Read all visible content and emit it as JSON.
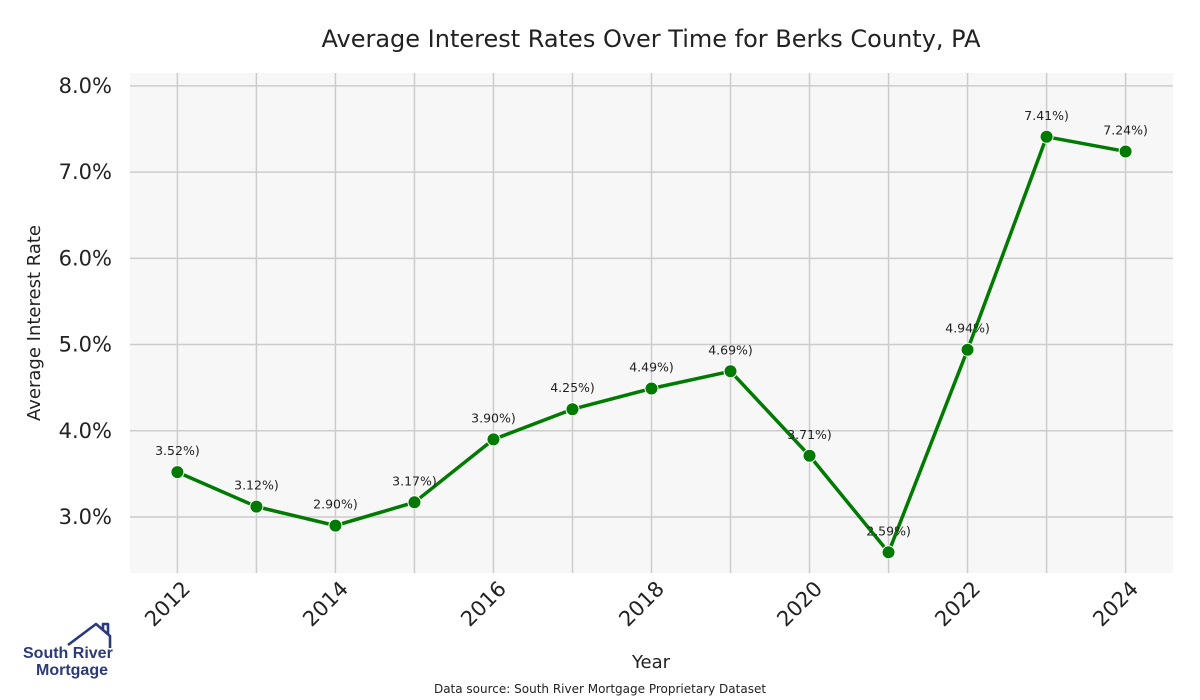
{
  "chart_data": {
    "type": "line",
    "title": "Average Interest Rates Over Time for Berks County, PA",
    "xlabel": "Year",
    "ylabel": "Average Interest Rate",
    "x": [
      2012,
      2013,
      2014,
      2015,
      2016,
      2017,
      2018,
      2019,
      2020,
      2021,
      2022,
      2023,
      2024
    ],
    "values": [
      3.52,
      3.12,
      2.9,
      3.17,
      3.9,
      4.25,
      4.49,
      4.69,
      3.71,
      2.59,
      4.94,
      7.41,
      7.24
    ],
    "data_labels": [
      "3.52%)",
      "3.12%)",
      "2.90%)",
      "3.17%)",
      "3.90%)",
      "4.25%)",
      "4.49%)",
      "4.69%)",
      "3.71%)",
      "2.59%)",
      "4.94%)",
      "7.41%)",
      "7.24%)"
    ],
    "x_ticks": [
      "2012",
      "2014",
      "2016",
      "2018",
      "2020",
      "2022",
      "2024"
    ],
    "y_ticks": [
      "3.0%",
      "4.0%",
      "5.0%",
      "6.0%",
      "7.0%",
      "8.0%"
    ],
    "ylim": [
      2.35,
      8.15
    ],
    "xlim": [
      2011.4,
      2024.6
    ],
    "grid": true,
    "line_color": "#007a00",
    "background_color": "#f7f7f7",
    "grid_color": "#cccccc"
  },
  "footer": {
    "source_text": "Data source: South River Mortgage Proprietary Dataset"
  },
  "logo": {
    "line1": "South River",
    "line2": "Mortgage",
    "color": "#2b3a7a"
  }
}
